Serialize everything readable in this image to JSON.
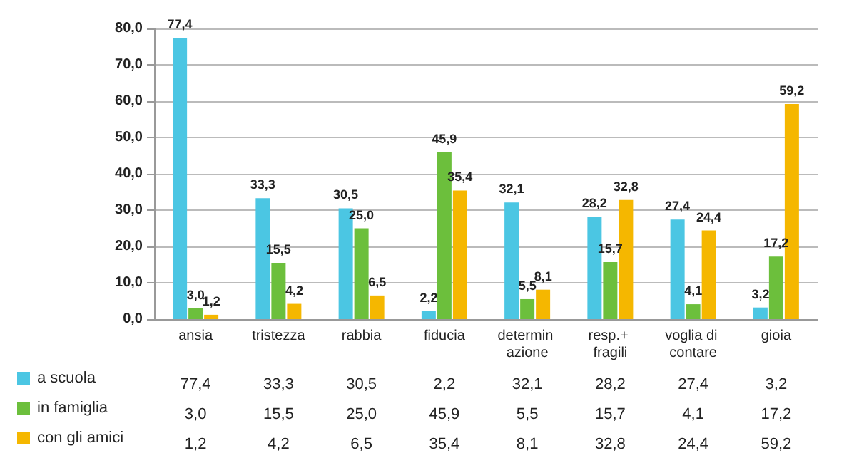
{
  "chart_data": {
    "type": "bar",
    "categories": [
      "ansia",
      "tristezza",
      "rabbia",
      "fiducia",
      "determin azione",
      "resp.+ fragili",
      "voglia di contare",
      "gioia"
    ],
    "series": [
      {
        "name": "a scuola",
        "color": "#4bc6e3",
        "values": [
          77.4,
          33.3,
          30.5,
          2.2,
          32.1,
          28.2,
          27.4,
          3.2
        ],
        "value_labels": [
          "77,4",
          "33,3",
          "30,5",
          "2,2",
          "32,1",
          "28,2",
          "27,4",
          "3,2"
        ]
      },
      {
        "name": "in famiglia",
        "color": "#6cbf3c",
        "values": [
          3.0,
          15.5,
          25.0,
          45.9,
          5.5,
          15.7,
          4.1,
          17.2
        ],
        "value_labels": [
          "3,0",
          "15,5",
          "25,0",
          "45,9",
          "5,5",
          "15,7",
          "4,1",
          "17,2"
        ]
      },
      {
        "name": "con gli amici",
        "color": "#f5b700",
        "values": [
          1.2,
          4.2,
          6.5,
          35.4,
          8.1,
          32.8,
          24.4,
          59.2
        ],
        "value_labels": [
          "1,2",
          "4,2",
          "6,5",
          "35,4",
          "8,1",
          "32,8",
          "24,4",
          "59,2"
        ]
      }
    ],
    "ylim": [
      0,
      80
    ],
    "yticks": [
      {
        "value": 0,
        "label": "0,0"
      },
      {
        "value": 10,
        "label": "10,0"
      },
      {
        "value": 20,
        "label": "20,0"
      },
      {
        "value": 30,
        "label": "30,0"
      },
      {
        "value": 40,
        "label": "40,0"
      },
      {
        "value": 50,
        "label": "50,0"
      },
      {
        "value": 60,
        "label": "60,0"
      },
      {
        "value": 70,
        "label": "70,0"
      },
      {
        "value": 80,
        "label": "80,0"
      }
    ],
    "grid": true,
    "legend": "bottom left"
  }
}
